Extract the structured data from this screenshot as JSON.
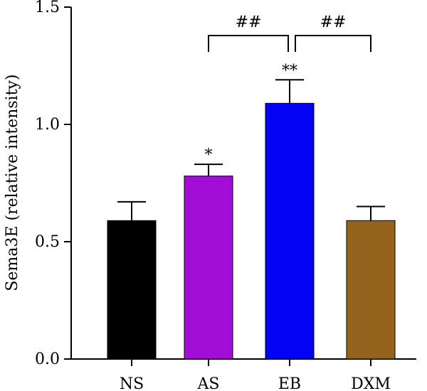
{
  "chart_data": {
    "type": "bar",
    "title": "",
    "xlabel": "",
    "ylabel": "Sema3E (relative intensity)",
    "categories": [
      "NS",
      "AS",
      "EB",
      "DXM"
    ],
    "values": [
      0.59,
      0.78,
      1.09,
      0.59
    ],
    "error": [
      0.08,
      0.05,
      0.1,
      0.06
    ],
    "significance": [
      "",
      "*",
      "**",
      ""
    ],
    "colors": [
      "#000000",
      "#a20ed6",
      "#0202f5",
      "#94631e"
    ],
    "ylim": [
      0,
      1.5
    ],
    "yticks": [
      "0.0",
      "0.5",
      "1.0",
      "1.5"
    ],
    "yticks_values": [
      0,
      0.5,
      1.0,
      1.5
    ],
    "grid": false,
    "legend": "none",
    "comparisons": [
      {
        "from": "AS",
        "to": "EB",
        "label": "##"
      },
      {
        "from": "EB",
        "to": "DXM",
        "label": "##"
      }
    ]
  }
}
